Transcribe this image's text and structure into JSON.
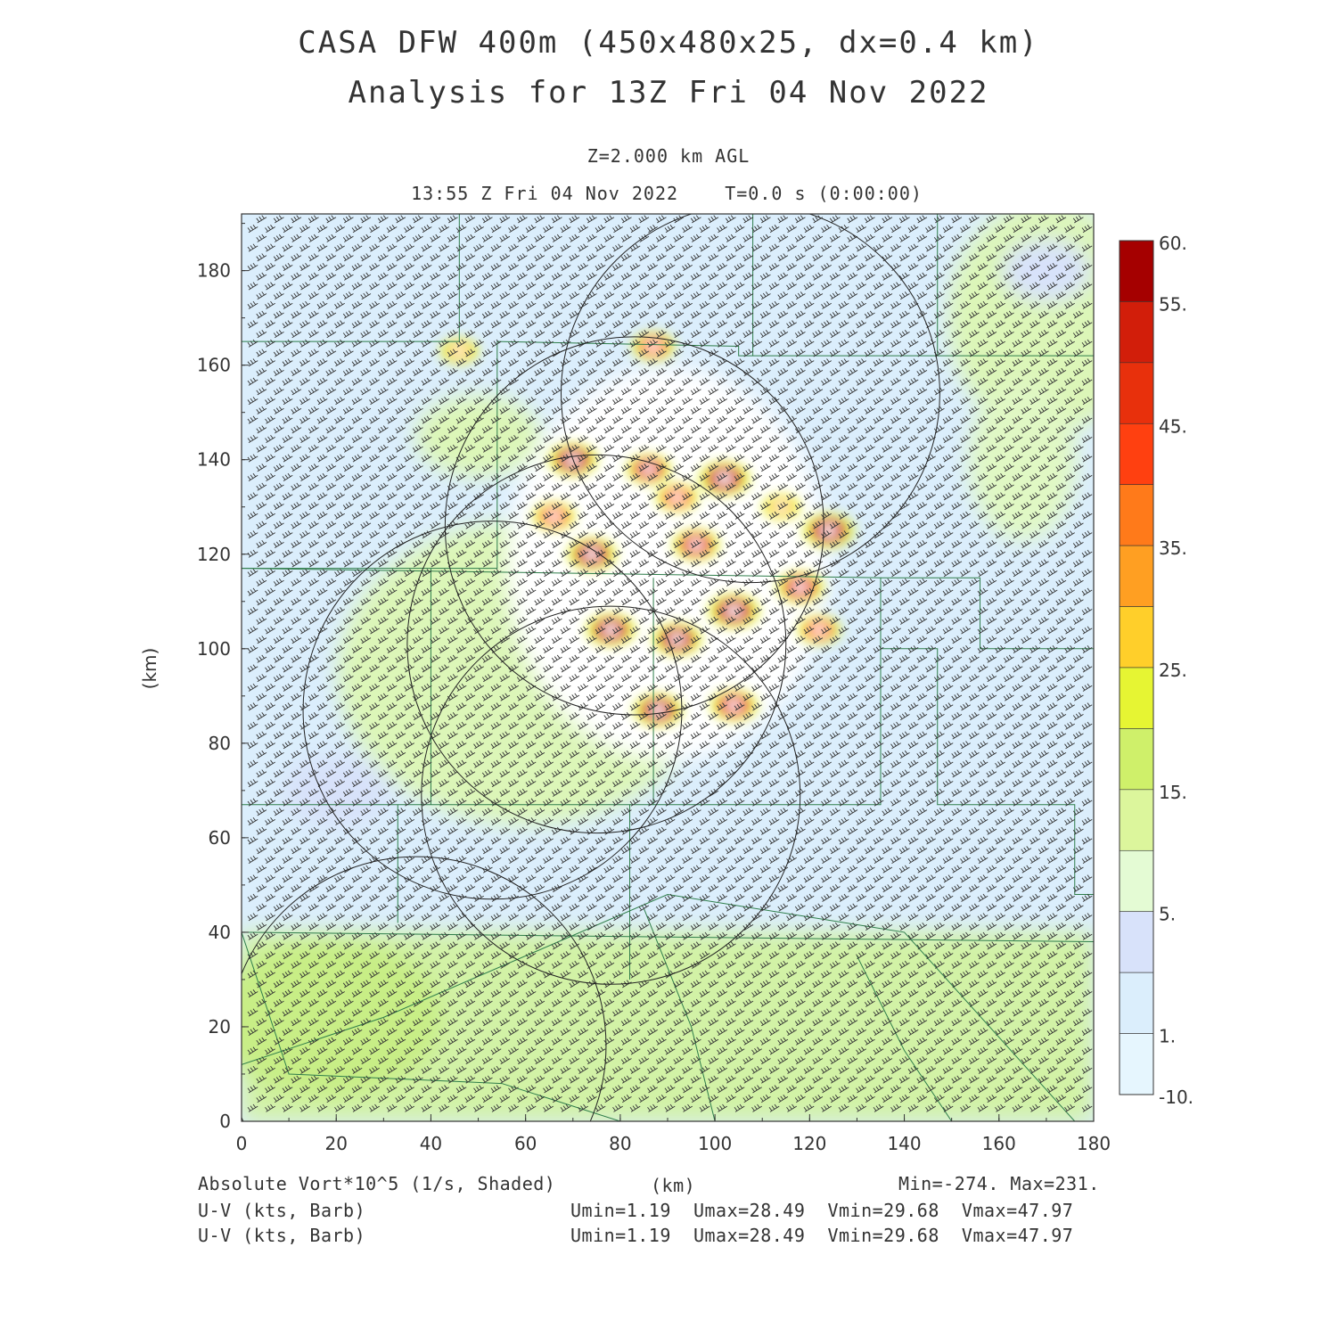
{
  "header": {
    "title_line1": "CASA DFW 400m (450x480x25, dx=0.4 km)",
    "title_line2": "Analysis for 13Z Fri 04 Nov 2022",
    "level": "Z=2.000 km AGL",
    "valid_time": "13:55 Z Fri 04 Nov 2022    T=0.0 s (0:00:00)"
  },
  "footer": {
    "field1": "Absolute Vort*10^5 (1/s, Shaded)",
    "xunit": "(km)",
    "minmax": "Min=-274. Max=231.",
    "field2": "U-V (kts, Barb)",
    "field3": "U-V (kts, Barb)",
    "stats2": "Umin=1.19  Umax=28.49  Vmin=29.68  Vmax=47.97",
    "stats3": "Umin=1.19  Umax=28.49  Vmin=29.68  Vmax=47.97"
  },
  "chart_data": {
    "type": "heatmap",
    "xlabel": "(km)",
    "ylabel": "(km)",
    "xlim": [
      0,
      180
    ],
    "ylim": [
      0,
      192
    ],
    "xticks": [
      0,
      20,
      40,
      60,
      80,
      100,
      120,
      140,
      160,
      180
    ],
    "yticks": [
      0,
      20,
      40,
      60,
      80,
      100,
      120,
      140,
      160,
      180
    ],
    "colorbar": {
      "labels": [
        "60.",
        "55.",
        "45.",
        "35.",
        "25.",
        "15.",
        "5.",
        "1.",
        "-10."
      ],
      "bins": [
        {
          "color": "#a50000"
        },
        {
          "color": "#d21e0a"
        },
        {
          "color": "#e8300c"
        },
        {
          "color": "#ff4010"
        },
        {
          "color": "#ff7a1a"
        },
        {
          "color": "#ff9f22"
        },
        {
          "color": "#ffcf2a"
        },
        {
          "color": "#e6f533"
        },
        {
          "color": "#cff06a"
        },
        {
          "color": "#dcf69c"
        },
        {
          "color": "#e4fbd4"
        },
        {
          "color": "#d8e2fa"
        },
        {
          "color": "#dbeefc"
        },
        {
          "color": "#e6f6fe"
        }
      ]
    },
    "vorticity_blobs": [
      {
        "x": 86,
        "y": 138,
        "v": 45
      },
      {
        "x": 92,
        "y": 132,
        "v": 40
      },
      {
        "x": 102,
        "y": 136,
        "v": 60
      },
      {
        "x": 74,
        "y": 120,
        "v": 55
      },
      {
        "x": 70,
        "y": 140,
        "v": 55
      },
      {
        "x": 124,
        "y": 125,
        "v": 60
      },
      {
        "x": 118,
        "y": 113,
        "v": 50
      },
      {
        "x": 104,
        "y": 108,
        "v": 60
      },
      {
        "x": 92,
        "y": 102,
        "v": 55
      },
      {
        "x": 78,
        "y": 104,
        "v": 55
      },
      {
        "x": 88,
        "y": 87,
        "v": 55
      },
      {
        "x": 104,
        "y": 88,
        "v": 50
      },
      {
        "x": 96,
        "y": 122,
        "v": 50
      },
      {
        "x": 87,
        "y": 164,
        "v": 40
      },
      {
        "x": 46,
        "y": 163,
        "v": 30
      },
      {
        "x": 66,
        "y": 128,
        "v": 40
      },
      {
        "x": 122,
        "y": 104,
        "v": 40
      },
      {
        "x": 114,
        "y": 130,
        "v": 30
      }
    ],
    "range_rings": [
      {
        "x": 107.5,
        "y": 154,
        "r": 40
      },
      {
        "x": 83,
        "y": 126,
        "r": 40
      },
      {
        "x": 75,
        "y": 101,
        "r": 40
      },
      {
        "x": 53,
        "y": 87,
        "r": 40
      },
      {
        "x": 78,
        "y": 69,
        "r": 40
      },
      {
        "x": 37,
        "y": 16,
        "r": 40
      }
    ],
    "wind_barbs": {
      "u_range": [
        1.19,
        28.49
      ],
      "v_range": [
        29.68,
        47.97
      ]
    },
    "field_min": -274,
    "field_max": 231
  }
}
